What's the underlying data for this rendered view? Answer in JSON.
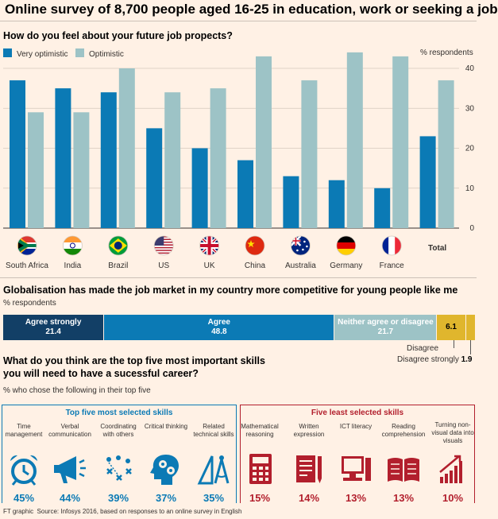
{
  "title": "Online survey of 8,700 people aged 16-25 in education, work or seeking a job",
  "colors": {
    "very_optimistic": "#0b7ab5",
    "optimistic": "#9dc3c6",
    "agree_strongly": "#123f66",
    "agree": "#0b7ab5",
    "neither": "#9dc3c6",
    "disagree": "#e0b62d",
    "top_skill": "#0b7ab5",
    "least_skill": "#b21f2d"
  },
  "chart_data": [
    {
      "type": "bar",
      "title": "How do you feel about your future job propects?",
      "ylabel": "% respondents",
      "ylim": [
        0,
        40
      ],
      "yticks": [
        0,
        10,
        20,
        30,
        40
      ],
      "grid": true,
      "legend_placement": "top-left",
      "categories": [
        "South Africa",
        "India",
        "Brazil",
        "US",
        "UK",
        "China",
        "Australia",
        "Germany",
        "France",
        "Total"
      ],
      "flag_icons": [
        "south-africa-flag-icon",
        "india-flag-icon",
        "brazil-flag-icon",
        "us-flag-icon",
        "uk-flag-icon",
        "china-flag-icon",
        "australia-flag-icon",
        "germany-flag-icon",
        "france-flag-icon",
        ""
      ],
      "series": [
        {
          "name": "Very optimistic",
          "values": [
            37,
            35,
            34,
            25,
            20,
            17,
            13,
            12,
            10,
            23
          ]
        },
        {
          "name": "Optimistic",
          "values": [
            29,
            29,
            40,
            34,
            35,
            43,
            37,
            44,
            43,
            37
          ]
        }
      ]
    },
    {
      "type": "bar",
      "title": "Globalisation has made the job market in my country more competitive for young people like me",
      "ylabel": "% respondents",
      "categories": [
        "Agree strongly",
        "Agree",
        "Neither agree or disagree",
        "Disagree",
        "Disagree strongly"
      ],
      "values": [
        21.4,
        48.8,
        21.7,
        6.1,
        1.9
      ],
      "value_labels": [
        "21.4",
        "48.8",
        "21.7",
        "6.1",
        "1.9"
      ]
    },
    {
      "type": "table",
      "title": "What do you think are the top five most important skills you will need to have a sucessful career?",
      "subtitle": "% who chose the following in their top five",
      "groups": [
        {
          "name": "Top five most selected skills",
          "skills": [
            {
              "label": "Time management",
              "value": 45,
              "display": "45%",
              "icon": "alarm-clock-icon"
            },
            {
              "label": "Verbal communication",
              "value": 44,
              "display": "44%",
              "icon": "megaphone-icon"
            },
            {
              "label": "Coordinating with others",
              "value": 39,
              "display": "39%",
              "icon": "strategy-diagram-icon"
            },
            {
              "label": "Critical thinking",
              "value": 37,
              "display": "37%",
              "icon": "head-gears-icon"
            },
            {
              "label": "Related technical skills",
              "value": 35,
              "display": "35%",
              "icon": "drafting-tools-icon"
            }
          ]
        },
        {
          "name": "Five least selected skills",
          "skills": [
            {
              "label": "Mathematical reasoning",
              "value": 15,
              "display": "15%",
              "icon": "calculator-icon"
            },
            {
              "label": "Written expression",
              "value": 14,
              "display": "14%",
              "icon": "document-pen-icon"
            },
            {
              "label": "ICT literacy",
              "value": 13,
              "display": "13%",
              "icon": "computer-icon"
            },
            {
              "label": "Reading comprehension",
              "value": 13,
              "display": "13%",
              "icon": "open-book-icon"
            },
            {
              "label": "Turning non-visual data into visuals",
              "value": 10,
              "display": "10%",
              "icon": "bar-chart-icon"
            }
          ]
        }
      ]
    }
  ],
  "footer": {
    "credit": "FT graphic",
    "source": "Source: Infosys 2016, based on responses to an online survey in English"
  }
}
